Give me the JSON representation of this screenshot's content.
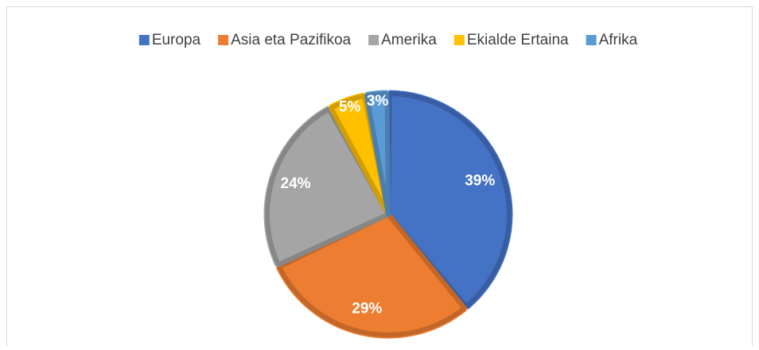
{
  "chart_data": {
    "type": "pie",
    "categories": [
      "Europa",
      "Asia eta Pazifikoa",
      "Amerika",
      "Ekialde Ertaina",
      "Afrika"
    ],
    "values": [
      39,
      29,
      24,
      5,
      3
    ],
    "value_labels": [
      "39%",
      "29%",
      "24%",
      "5%",
      "3%"
    ],
    "colors": [
      "#4472c4",
      "#ed7d31",
      "#a5a5a5",
      "#ffc000",
      "#5b9bd5"
    ],
    "legend": "top"
  }
}
